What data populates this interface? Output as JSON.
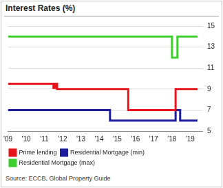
{
  "chart_data": {
    "type": "line",
    "title": "Interest Rates (%)",
    "annotations": [
      "Source: ECCB, Global Property Guide"
    ],
    "x": [
      2009,
      2011.5,
      2011.6,
      2011.7,
      2014.6,
      2015.6,
      2018.0,
      2018.1,
      2018.2,
      2018.3,
      2018.45,
      2019.4
    ],
    "series": [
      {
        "name": "Prime lending",
        "color": "#e8141b",
        "values": [
          9.5,
          9.1,
          9.5,
          9.0,
          9.0,
          7.0,
          7.0,
          7.0,
          9.0,
          9.0,
          9.0,
          9.0
        ]
      },
      {
        "name": "Residential Mortgage (min)",
        "color": "#1c1c9c",
        "values": [
          7,
          7,
          7,
          7,
          6,
          6,
          6,
          6,
          7,
          7,
          6,
          6
        ]
      },
      {
        "name": "Residential Mortgage (max)",
        "color": "#3ecf2f",
        "values": [
          14,
          14,
          14,
          14,
          14,
          14,
          12,
          12,
          12,
          14,
          14,
          14
        ]
      }
    ],
    "line_style": "step",
    "xlim": [
      2009,
      2019.7
    ],
    "xticks": [
      {
        "value": 2009,
        "label": "'09"
      },
      {
        "value": 2010,
        "label": "'10"
      },
      {
        "value": 2011,
        "label": "'11"
      },
      {
        "value": 2012,
        "label": "'12"
      },
      {
        "value": 2013,
        "label": "'13"
      },
      {
        "value": 2014,
        "label": "'14"
      },
      {
        "value": 2015,
        "label": "'15"
      },
      {
        "value": 2016,
        "label": "'16"
      },
      {
        "value": 2017,
        "label": "'17"
      },
      {
        "value": 2018,
        "label": "'18"
      },
      {
        "value": 2019,
        "label": "'19"
      }
    ],
    "ylim": [
      5,
      15
    ],
    "yticks": [
      5,
      7,
      9,
      11,
      13,
      15
    ],
    "grid": true,
    "legend": "bottom"
  }
}
